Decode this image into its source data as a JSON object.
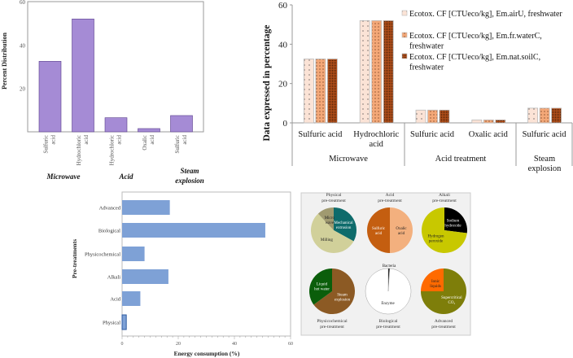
{
  "chart_data": [
    {
      "type": "bar",
      "ylabel": "Percent Distribution",
      "ylim": [
        0,
        60
      ],
      "yticks": [
        "20",
        "40",
        "60"
      ],
      "yticks_values": [
        20,
        40,
        60
      ],
      "labels": [
        [
          "Sulfuric",
          "acid"
        ],
        [
          "Hydrochloric",
          "acid"
        ],
        [
          "Hydrochloric",
          "acid"
        ],
        [
          "Oxalic",
          "acid"
        ],
        [
          "Sulfuric",
          "acid"
        ]
      ],
      "values": [
        32.5,
        52,
        6.5,
        1.5,
        7.5
      ],
      "groups": [
        [
          "Microwave"
        ],
        [
          "Acid"
        ],
        [
          "Steam",
          "explosion"
        ]
      ],
      "color": "#a58bd5"
    },
    {
      "type": "bar",
      "ylabel": "Data expressed in percentage",
      "ylim": [
        0,
        60
      ],
      "yticks": [
        "0",
        "20",
        "40",
        "60"
      ],
      "yticks_values": [
        0,
        20,
        40,
        60
      ],
      "categories": [
        [
          "Sulfuric acid"
        ],
        [
          "Hydrochloric",
          "acid"
        ],
        [
          "Sulfuric acid"
        ],
        [
          "Oxalic acid"
        ],
        [
          "Sulfuric acid"
        ]
      ],
      "groups": [
        [
          "Microwave"
        ],
        [
          "Acid treatment"
        ],
        [
          "Steam",
          "explosion"
        ]
      ],
      "series": [
        {
          "name": [
            "Ecotox. CF [CTUeco/kg], Em.airU, freshwater"
          ],
          "values": [
            32.5,
            52,
            6.5,
            1.5,
            7.5
          ],
          "color": "#fbe3d6"
        },
        {
          "name": [
            "Ecotox. CF [CTUeco/kg], Em.fr.waterC,",
            "freshwater"
          ],
          "values": [
            32.5,
            52,
            6.5,
            1.5,
            7.5
          ],
          "color": "#f4a878"
        },
        {
          "name": [
            "Ecotox. CF [CTUeco/kg], Em.nat.soilC,",
            "freshwater"
          ],
          "values": [
            32.5,
            52,
            6.5,
            1.5,
            7.5
          ],
          "color": "#b5501a"
        }
      ],
      "legend": "top-right"
    },
    {
      "type": "bar",
      "orientation": "horizontal",
      "xlabel": "Energy consumption (%)",
      "ylabel": "Pre-treatments",
      "xlim": [
        0,
        60
      ],
      "xticks": [
        "0",
        "20",
        "40",
        "60"
      ],
      "xticks_values": [
        0,
        20,
        40,
        60
      ],
      "categories": [
        "Advanced",
        "Biological",
        "Physicochemical",
        "Alkali",
        "Acid",
        "Physical"
      ],
      "values": [
        17,
        51,
        8,
        16.5,
        6.5,
        1.5
      ],
      "color": "#7ea1d6"
    },
    {
      "type": "pie",
      "pies": [
        {
          "title": [
            "Physical",
            "pre-treatment"
          ],
          "slices": [
            {
              "label": [
                "Mechanical",
                "extrusion"
              ],
              "value": 33,
              "color": "#0e6b6b"
            },
            {
              "label": [
                "Milling"
              ],
              "value": 55,
              "color": "#d1d09a"
            },
            {
              "label": [
                "Micro",
                "wave"
              ],
              "value": 12,
              "color": "#a09a70"
            }
          ]
        },
        {
          "title": [
            "Acid",
            "pre-treatment"
          ],
          "slices": [
            {
              "label": [
                "Oxalic",
                "acid"
              ],
              "value": 50,
              "color": "#f3b07e"
            },
            {
              "label": [
                "Sulfuric",
                "acid"
              ],
              "value": 50,
              "color": "#c45e10"
            }
          ]
        },
        {
          "title": [
            "Alkali",
            "pre-treatment"
          ],
          "slices": [
            {
              "label": [
                "Sodium",
                "hydroxide"
              ],
              "value": 27,
              "color": "#000000"
            },
            {
              "label": [
                "Hydrogen",
                "peroxide"
              ],
              "value": 73,
              "color": "#c8c800"
            }
          ]
        },
        {
          "title": [
            "Physicochemical",
            "pre-treatment"
          ],
          "slices": [
            {
              "label": [
                "Steam",
                "explosion"
              ],
              "value": 65,
              "color": "#8c5a24"
            },
            {
              "label": [
                "Liquid",
                "hot water"
              ],
              "value": 35,
              "color": "#0b5e0b"
            }
          ]
        },
        {
          "title": [
            "Biological",
            "pre-treatment"
          ],
          "slices": [
            {
              "label": [
                "Bacteria"
              ],
              "value": 1,
              "color": "#000000"
            },
            {
              "label": [
                "Enzyme"
              ],
              "value": 99,
              "color": "#ffffff"
            }
          ]
        },
        {
          "title": [
            "Advanced",
            "pre-treatment"
          ],
          "slices": [
            {
              "label": [
                "Supercritical",
                "CO₂"
              ],
              "value": 75,
              "color": "#7e7e0a"
            },
            {
              "label": [
                "Ionic",
                "liquids"
              ],
              "value": 25,
              "color": "#ff6a00"
            }
          ]
        }
      ]
    }
  ]
}
